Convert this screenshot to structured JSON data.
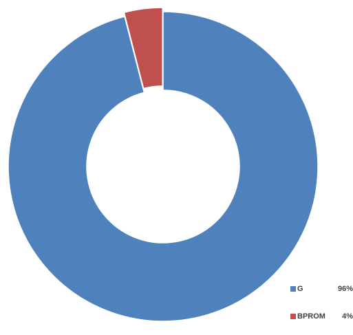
{
  "chart_data": {
    "type": "pie",
    "variant": "donut",
    "title": "",
    "slices": [
      {
        "label": "G",
        "value": 96,
        "display": "96%",
        "color": "#4f81bd"
      },
      {
        "label": "BPROM",
        "value": 4,
        "display": "4%",
        "color": "#c0504d"
      }
    ],
    "legend_position": "bottom-right"
  }
}
